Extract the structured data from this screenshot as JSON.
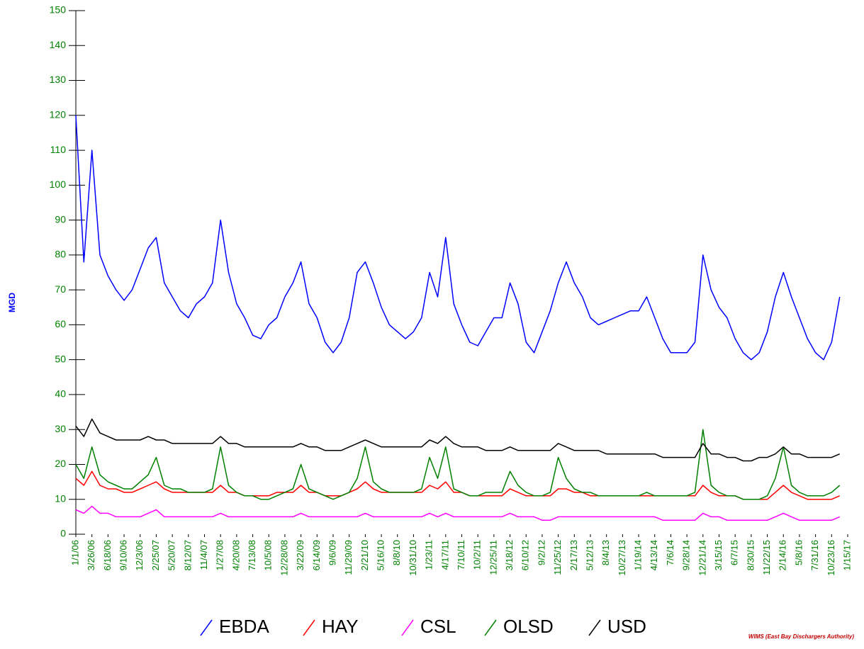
{
  "chart_data": {
    "type": "line",
    "y_label": "MGD",
    "footnote": "WIMS (East Bay Dischargers Authority)",
    "ylim": [
      0,
      150
    ],
    "yticks": [
      0,
      10,
      20,
      30,
      40,
      50,
      60,
      70,
      80,
      90,
      100,
      110,
      120,
      130,
      140,
      150
    ],
    "xlim": [
      "1/1/06",
      "1/15/17"
    ],
    "xticks": [
      "1/1/06",
      "3/26/06",
      "6/18/06",
      "9/10/06",
      "12/3/06",
      "2/25/07",
      "5/20/07",
      "8/12/07",
      "11/4/07",
      "1/27/08",
      "4/20/08",
      "7/13/08",
      "10/5/08",
      "12/28/08",
      "3/22/09",
      "6/14/09",
      "9/6/09",
      "11/29/09",
      "2/21/10",
      "5/16/10",
      "8/8/10",
      "10/31/10",
      "1/23/11",
      "4/17/11",
      "7/10/11",
      "10/2/11",
      "12/25/11",
      "3/18/12",
      "6/10/12",
      "9/2/12",
      "11/25/12",
      "2/17/13",
      "5/12/13",
      "8/4/13",
      "10/27/13",
      "1/19/14",
      "4/13/14",
      "7/6/14",
      "9/28/14",
      "12/21/14",
      "3/15/15",
      "6/7/15",
      "8/30/15",
      "11/22/15",
      "2/14/16",
      "5/8/16",
      "7/31/16",
      "10/23/16",
      "1/15/17"
    ],
    "x": [
      "1/1/06",
      "2/12/06",
      "3/26/06",
      "5/7/06",
      "6/18/06",
      "7/30/06",
      "9/10/06",
      "10/22/06",
      "12/3/06",
      "1/14/07",
      "2/25/07",
      "4/8/07",
      "5/20/07",
      "7/1/07",
      "8/12/07",
      "9/23/07",
      "11/4/07",
      "12/16/07",
      "1/27/08",
      "3/9/08",
      "4/20/08",
      "6/1/08",
      "7/13/08",
      "8/24/08",
      "10/5/08",
      "11/16/08",
      "12/28/08",
      "2/8/09",
      "3/22/09",
      "5/3/09",
      "6/14/09",
      "7/26/09",
      "9/6/09",
      "10/18/09",
      "11/29/09",
      "1/10/10",
      "2/21/10",
      "4/4/10",
      "5/16/10",
      "6/27/10",
      "8/8/10",
      "9/19/10",
      "10/31/10",
      "12/12/10",
      "1/23/11",
      "3/6/11",
      "4/17/11",
      "5/29/11",
      "7/10/11",
      "8/21/11",
      "10/2/11",
      "11/13/11",
      "12/25/11",
      "2/5/12",
      "3/18/12",
      "4/29/12",
      "6/10/12",
      "7/22/12",
      "9/2/12",
      "10/14/12",
      "11/25/12",
      "1/6/13",
      "2/17/13",
      "3/31/13",
      "5/12/13",
      "6/23/13",
      "8/4/13",
      "9/15/13",
      "10/27/13",
      "12/8/13",
      "1/19/14",
      "3/2/14",
      "4/13/14",
      "5/25/14",
      "7/6/14",
      "8/17/14",
      "9/28/14",
      "11/9/14",
      "12/21/14",
      "2/1/15",
      "3/15/15",
      "4/26/15",
      "6/7/15",
      "7/19/15",
      "8/30/15",
      "10/11/15",
      "11/22/15",
      "1/3/16",
      "2/14/16",
      "3/27/16",
      "5/8/16",
      "6/19/16",
      "7/31/16",
      "9/11/16",
      "10/23/16",
      "12/4/16"
    ],
    "series": [
      {
        "name": "EBDA",
        "color": "#0000ff",
        "values": [
          120,
          78,
          110,
          80,
          74,
          70,
          67,
          70,
          76,
          82,
          85,
          72,
          68,
          64,
          62,
          66,
          68,
          72,
          90,
          75,
          66,
          62,
          57,
          56,
          60,
          62,
          68,
          72,
          78,
          66,
          62,
          55,
          52,
          55,
          62,
          75,
          78,
          72,
          65,
          60,
          58,
          56,
          58,
          62,
          75,
          68,
          85,
          66,
          60,
          55,
          54,
          58,
          62,
          62,
          72,
          66,
          55,
          52,
          58,
          64,
          72,
          78,
          72,
          68,
          62,
          60,
          61,
          62,
          63,
          64,
          64,
          68,
          62,
          56,
          52,
          52,
          52,
          55,
          80,
          70,
          65,
          62,
          56,
          52,
          50,
          52,
          58,
          68,
          75,
          68,
          62,
          56,
          52,
          50,
          55,
          68
        ]
      },
      {
        "name": "HAY",
        "color": "#ff0000",
        "values": [
          16,
          14,
          18,
          14,
          13,
          13,
          12,
          12,
          13,
          14,
          15,
          13,
          12,
          12,
          12,
          12,
          12,
          12,
          14,
          12,
          12,
          11,
          11,
          11,
          11,
          12,
          12,
          12,
          14,
          12,
          12,
          11,
          11,
          11,
          12,
          13,
          15,
          13,
          12,
          12,
          12,
          12,
          12,
          12,
          14,
          13,
          15,
          12,
          12,
          11,
          11,
          11,
          11,
          11,
          13,
          12,
          11,
          11,
          11,
          11,
          13,
          13,
          12,
          12,
          11,
          11,
          11,
          11,
          11,
          11,
          11,
          11,
          11,
          11,
          11,
          11,
          11,
          11,
          14,
          12,
          11,
          11,
          11,
          10,
          10,
          10,
          10,
          12,
          14,
          12,
          11,
          10,
          10,
          10,
          10,
          11
        ]
      },
      {
        "name": "CSL",
        "color": "#ff00ff",
        "values": [
          7,
          6,
          8,
          6,
          6,
          5,
          5,
          5,
          5,
          6,
          7,
          5,
          5,
          5,
          5,
          5,
          5,
          5,
          6,
          5,
          5,
          5,
          5,
          5,
          5,
          5,
          5,
          5,
          6,
          5,
          5,
          5,
          5,
          5,
          5,
          5,
          6,
          5,
          5,
          5,
          5,
          5,
          5,
          5,
          6,
          5,
          6,
          5,
          5,
          5,
          5,
          5,
          5,
          5,
          6,
          5,
          5,
          5,
          4,
          4,
          5,
          5,
          5,
          5,
          5,
          5,
          5,
          5,
          5,
          5,
          5,
          5,
          5,
          4,
          4,
          4,
          4,
          4,
          6,
          5,
          5,
          4,
          4,
          4,
          4,
          4,
          4,
          5,
          6,
          5,
          4,
          4,
          4,
          4,
          4,
          5
        ]
      },
      {
        "name": "OLSD",
        "color": "#008000",
        "values": [
          20,
          16,
          25,
          17,
          15,
          14,
          13,
          13,
          15,
          17,
          22,
          14,
          13,
          13,
          12,
          12,
          12,
          13,
          25,
          14,
          12,
          11,
          11,
          10,
          10,
          11,
          12,
          13,
          20,
          13,
          12,
          11,
          10,
          11,
          12,
          16,
          25,
          15,
          13,
          12,
          12,
          12,
          12,
          13,
          22,
          16,
          25,
          13,
          12,
          11,
          11,
          12,
          12,
          12,
          18,
          14,
          12,
          11,
          11,
          12,
          22,
          16,
          13,
          12,
          12,
          11,
          11,
          11,
          11,
          11,
          11,
          12,
          11,
          11,
          11,
          11,
          11,
          12,
          30,
          14,
          12,
          11,
          11,
          10,
          10,
          10,
          11,
          16,
          25,
          14,
          12,
          11,
          11,
          11,
          12,
          14
        ]
      },
      {
        "name": "USD",
        "color": "#000000",
        "values": [
          31,
          28,
          33,
          29,
          28,
          27,
          27,
          27,
          27,
          28,
          27,
          27,
          26,
          26,
          26,
          26,
          26,
          26,
          28,
          26,
          26,
          25,
          25,
          25,
          25,
          25,
          25,
          25,
          26,
          25,
          25,
          24,
          24,
          24,
          25,
          26,
          27,
          26,
          25,
          25,
          25,
          25,
          25,
          25,
          27,
          26,
          28,
          26,
          25,
          25,
          25,
          24,
          24,
          24,
          25,
          24,
          24,
          24,
          24,
          24,
          26,
          25,
          24,
          24,
          24,
          24,
          23,
          23,
          23,
          23,
          23,
          23,
          23,
          22,
          22,
          22,
          22,
          22,
          26,
          23,
          23,
          22,
          22,
          21,
          21,
          22,
          22,
          23,
          25,
          23,
          23,
          22,
          22,
          22,
          22,
          23
        ]
      }
    ]
  }
}
